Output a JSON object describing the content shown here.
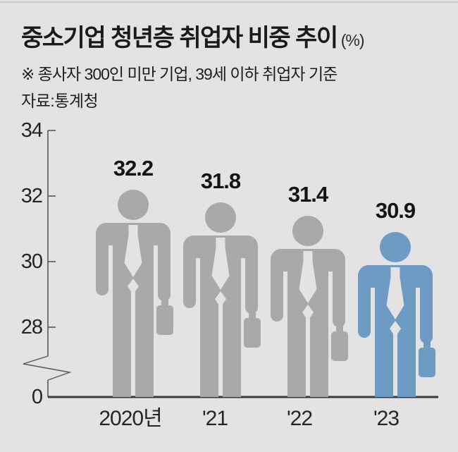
{
  "title": {
    "text": "중소기업 청년층 취업자 비중 추이",
    "unit": "(%)"
  },
  "note": "※ 종사자 300인 미만 기업, 39세 이하 취업자 기준",
  "source": "자료:통계청",
  "chart_data": {
    "type": "bar",
    "subtype": "pictogram-businessman",
    "title": "중소기업 청년층 취업자 비중 추이",
    "unit": "%",
    "categories": [
      "2020년",
      "'21",
      "'22",
      "'23"
    ],
    "values": [
      32.2,
      31.8,
      31.4,
      30.9
    ],
    "value_labels": [
      "32.2",
      "31.8",
      "31.4",
      "30.9"
    ],
    "y_ticks": [
      34,
      32,
      30,
      28
    ],
    "y_zero_label": "0",
    "axis_break": true,
    "ylim_visible": [
      28,
      34
    ],
    "grid": false,
    "legend": "none",
    "highlight_index": 3
  },
  "colors": {
    "background": "#e3e3e4",
    "figure_default": "#a9a9ab",
    "figure_highlight": "#6d9bc4",
    "axis_line": "#58585a",
    "baseline": "#3a3a3c",
    "text": "#1a1a1a"
  }
}
